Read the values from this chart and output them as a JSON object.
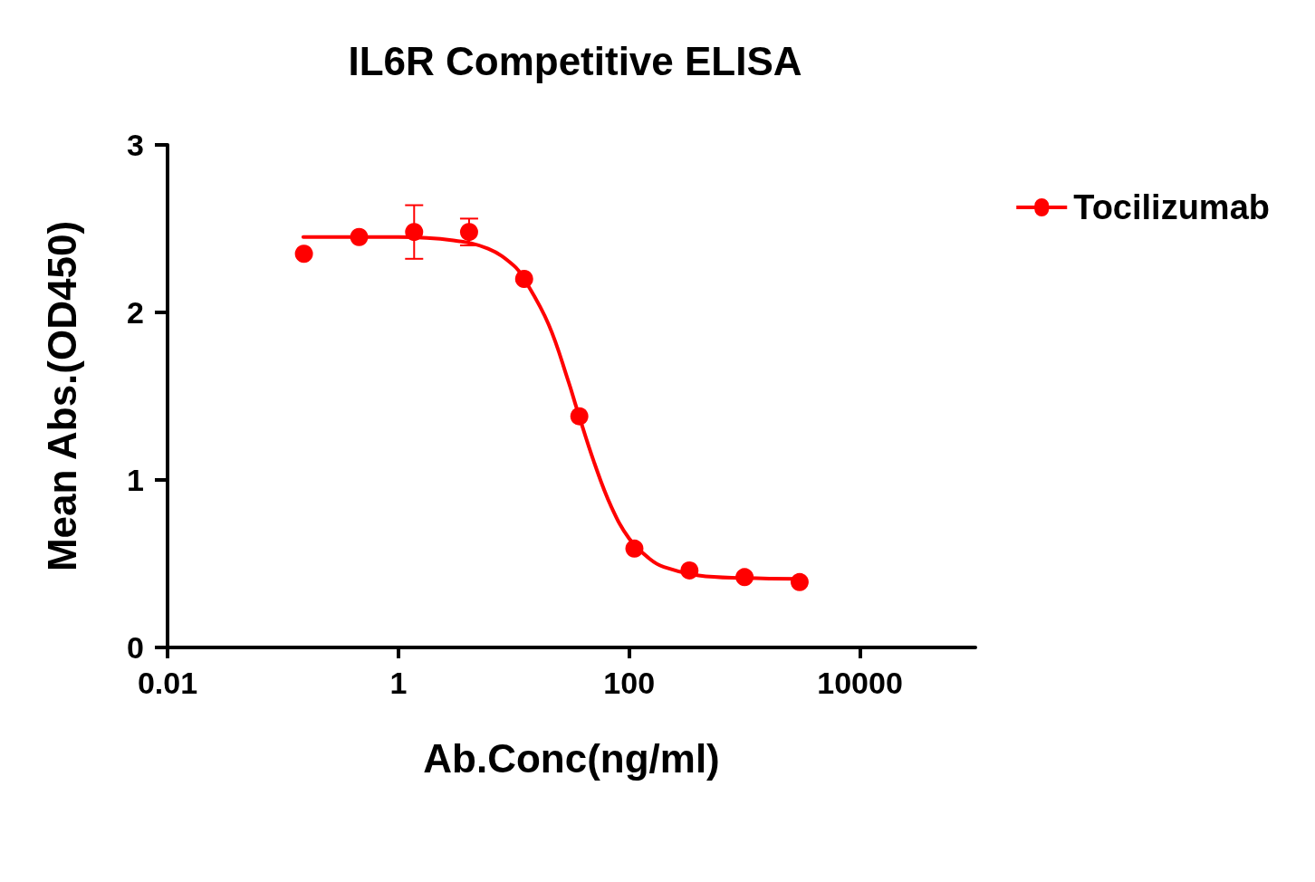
{
  "chart_data": {
    "type": "scatter",
    "title": "IL6R Competitive ELISA",
    "xlabel": "Ab.Conc(ng/ml)",
    "ylabel": "Mean Abs.(OD450)",
    "log": "x",
    "xlim": [
      0.01,
      100000
    ],
    "xticks": [
      0.01,
      1,
      100,
      10000
    ],
    "ylim": [
      0,
      3
    ],
    "yticks": [
      0,
      1,
      2,
      3
    ],
    "grid": false,
    "legend": "top right",
    "series": [
      {
        "name": "Tocilizumab",
        "marker": "circle",
        "color": "#ff0000",
        "x": [
          0.152,
          0.457,
          1.37,
          4.1,
          12.3,
          37,
          111,
          333,
          1000,
          3000
        ],
        "values": [
          2.35,
          2.45,
          2.48,
          2.48,
          2.2,
          1.38,
          0.59,
          0.46,
          0.42,
          0.39
        ],
        "errors": [
          null,
          null,
          0.16,
          0.08,
          null,
          null,
          null,
          null,
          null,
          null
        ]
      },
      {
        "type": "line",
        "marker": "none",
        "color": "#ff0000",
        "line_style": "solid",
        "x": [
          0.15,
          1,
          3,
          6,
          10,
          12.3,
          20,
          30,
          35,
          50,
          70,
          100,
          150,
          200,
          400,
          1000,
          3000
        ],
        "values": [
          2.45,
          2.45,
          2.43,
          2.38,
          2.28,
          2.2,
          1.93,
          1.58,
          1.43,
          1.1,
          0.84,
          0.65,
          0.53,
          0.48,
          0.43,
          0.415,
          0.41
        ]
      }
    ]
  }
}
